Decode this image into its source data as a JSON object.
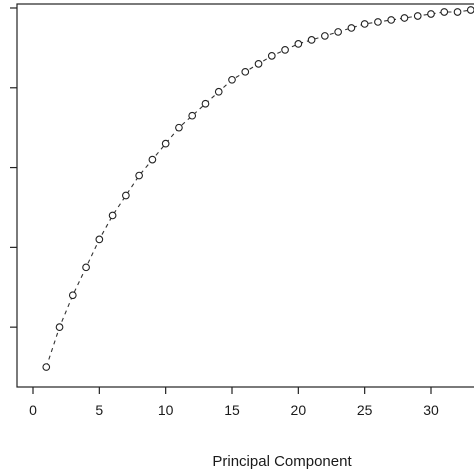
{
  "chart_data": {
    "type": "scatter",
    "title": "",
    "xlabel": "Principal Component",
    "ylabel": "",
    "xlim": [
      -0.5,
      33.5
    ],
    "ylim": [
      0.05,
      1.01
    ],
    "x_ticks": [
      0,
      5,
      10,
      15,
      20,
      25,
      30
    ],
    "y_ticks": [
      0.2,
      0.4,
      0.6,
      0.8,
      1.0
    ],
    "y_tick_labels_visible": false,
    "grid": false,
    "connector": "dashed",
    "series": [
      {
        "x": [
          1,
          2,
          3,
          4,
          5,
          6,
          7,
          8,
          9,
          10,
          11,
          12,
          13,
          14,
          15,
          16,
          17,
          18,
          19,
          20,
          21,
          22,
          23,
          24,
          25,
          26,
          27,
          28,
          29,
          30,
          31,
          32,
          33
        ],
        "values": [
          0.1,
          0.2,
          0.28,
          0.35,
          0.42,
          0.48,
          0.53,
          0.58,
          0.62,
          0.66,
          0.7,
          0.73,
          0.76,
          0.79,
          0.82,
          0.84,
          0.86,
          0.88,
          0.895,
          0.91,
          0.92,
          0.93,
          0.94,
          0.95,
          0.96,
          0.965,
          0.97,
          0.975,
          0.98,
          0.985,
          0.99,
          0.99,
          0.995
        ]
      }
    ],
    "colors": {
      "axis": "#222222",
      "marker_stroke": "#222222",
      "marker_fill": "#ffffff"
    }
  }
}
